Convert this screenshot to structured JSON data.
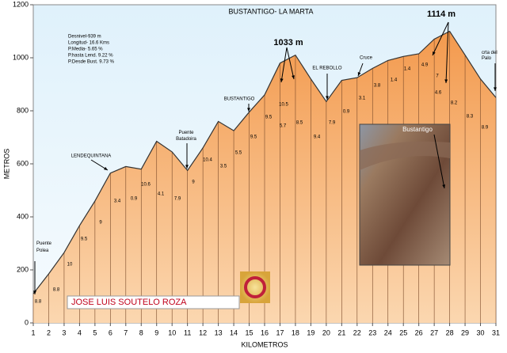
{
  "chart_data": {
    "type": "area",
    "title": "BUSTANTIGO- LA MARTA",
    "x_label": "KILOMETROS",
    "y_label": "METROS",
    "x": [
      1,
      2,
      3,
      4,
      5,
      6,
      7,
      8,
      9,
      10,
      11,
      12,
      13,
      14,
      15,
      16,
      17,
      18,
      19,
      20,
      21,
      22,
      23,
      24,
      25,
      26,
      27,
      28,
      29,
      30,
      31
    ],
    "values": [
      110,
      185,
      265,
      367,
      460,
      565,
      590,
      580,
      685,
      645,
      575,
      660,
      760,
      725,
      795,
      860,
      980,
      1010,
      920,
      835,
      915,
      925,
      960,
      990,
      1005,
      1015,
      1070,
      1100,
      1010,
      920,
      850
    ],
    "color": "#f39a4e",
    "xlim": [
      1,
      31
    ],
    "ylim": [
      0,
      1200
    ],
    "xticks": [
      1,
      2,
      3,
      4,
      5,
      6,
      7,
      8,
      9,
      10,
      11,
      12,
      13,
      14,
      15,
      16,
      17,
      18,
      19,
      20,
      21,
      22,
      23,
      24,
      25,
      26,
      27,
      28,
      29,
      30,
      31
    ],
    "yticks": [
      0,
      200,
      400,
      600,
      800,
      1000,
      1200
    ],
    "stats": [
      "Desnivel-939 m",
      "Longitud- 16.6 Kms",
      "P.Media- 5.65 %",
      "P.hasta Lend. 9.22 %",
      "P.Desde Bust. 9.73 %"
    ],
    "places": [
      "Puente Polea",
      "LENDEQUINTANA",
      "Puente Batadoira",
      "BUSTANTIGO",
      "EL REBOLLO",
      "Cruce",
      "crta del Palo"
    ],
    "peaks": [
      "1033 m",
      "1114 m"
    ],
    "slopes": [
      "8.8",
      "8.8",
      "10",
      "9.5",
      "9",
      "3.4",
      "0.9",
      "10.6",
      "4.1",
      "7.9",
      "9",
      "10.4",
      "3.5",
      "5.5",
      "9.5",
      "9.5",
      "5.7",
      "10.5",
      "8.5",
      "9.4",
      "7.9",
      "0.9",
      "3.1",
      "3.8",
      "1.4",
      "1.4",
      "4.9",
      "7",
      "4.6",
      "8.2",
      "8.3",
      "8.9"
    ],
    "author": "JOSE LUIS SOUTELO ROZA",
    "photo_label": "Bustantigo"
  }
}
